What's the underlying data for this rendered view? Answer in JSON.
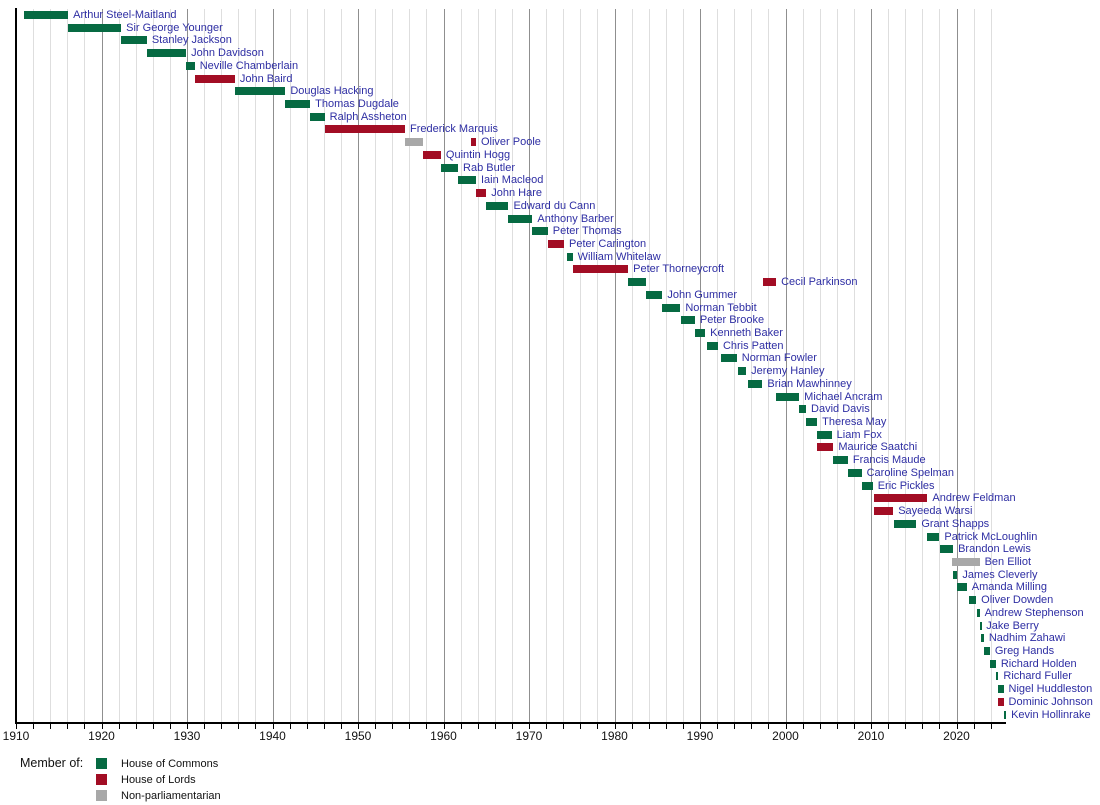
{
  "chart_data": {
    "type": "bar",
    "variant": "timeline-gantt",
    "title": "",
    "x_axis": {
      "range": [
        1910,
        2025.8
      ],
      "tick_labels": [
        "1910",
        "1920",
        "1930",
        "1940",
        "1950",
        "1960",
        "1970",
        "1980",
        "1990",
        "2000",
        "2010",
        "2020"
      ],
      "gridline_step_years": 2,
      "grid": true
    },
    "colors": {
      "commons": "#066a42",
      "lords": "#a20d24",
      "nonparl": "#a8a8a8",
      "label_text": "#2e2ea3",
      "grid_minor": "#dedede",
      "grid_major": "#8f8f8f",
      "axis": "#000000"
    },
    "legend": {
      "title": "Member of:",
      "items": [
        {
          "key": "commons",
          "label": "House of Commons",
          "color": "#066a42"
        },
        {
          "key": "lords",
          "label": "House of Lords",
          "color": "#a20d24"
        },
        {
          "key": "nonparl",
          "label": "Non-parliamentarian",
          "color": "#a8a8a8"
        }
      ]
    },
    "rows": [
      {
        "name": "Arthur Steel-Maitland",
        "bars": [
          {
            "start": 1910.9,
            "end": 1916.1,
            "house": "commons"
          }
        ]
      },
      {
        "name": "Sir George Younger",
        "bars": [
          {
            "start": 1916.1,
            "end": 1922.3,
            "house": "commons"
          }
        ]
      },
      {
        "name": "Stanley Jackson",
        "bars": [
          {
            "start": 1922.3,
            "end": 1925.3,
            "house": "commons"
          }
        ]
      },
      {
        "name": "John Davidson",
        "bars": [
          {
            "start": 1925.3,
            "end": 1929.9,
            "house": "commons"
          }
        ]
      },
      {
        "name": "Neville Chamberlain",
        "bars": [
          {
            "start": 1929.9,
            "end": 1930.9,
            "house": "commons"
          }
        ]
      },
      {
        "name": "John Baird",
        "bars": [
          {
            "start": 1930.9,
            "end": 1935.6,
            "house": "lords"
          }
        ]
      },
      {
        "name": "Douglas Hacking",
        "bars": [
          {
            "start": 1935.6,
            "end": 1941.5,
            "house": "commons"
          }
        ]
      },
      {
        "name": "Thomas Dugdale",
        "bars": [
          {
            "start": 1941.5,
            "end": 1944.4,
            "house": "commons"
          }
        ]
      },
      {
        "name": "Ralph Assheton",
        "bars": [
          {
            "start": 1944.4,
            "end": 1946.1,
            "house": "commons"
          }
        ]
      },
      {
        "name": "Frederick Marquis",
        "bars": [
          {
            "start": 1946.1,
            "end": 1955.5,
            "house": "lords"
          }
        ]
      },
      {
        "name": "Oliver Poole",
        "bars": [
          {
            "start": 1955.5,
            "end": 1957.6,
            "house": "nonparl"
          },
          {
            "start": 1963.2,
            "end": 1963.8,
            "house": "lords"
          }
        ]
      },
      {
        "name": "Quintin Hogg",
        "bars": [
          {
            "start": 1957.6,
            "end": 1959.7,
            "house": "lords"
          }
        ]
      },
      {
        "name": "Rab Butler",
        "bars": [
          {
            "start": 1959.7,
            "end": 1961.7,
            "house": "commons"
          }
        ]
      },
      {
        "name": "Iain Macleod",
        "bars": [
          {
            "start": 1961.7,
            "end": 1963.8,
            "house": "commons"
          }
        ]
      },
      {
        "name": "John Hare",
        "bars": [
          {
            "start": 1963.8,
            "end": 1965.0,
            "house": "lords"
          }
        ]
      },
      {
        "name": "Edward du Cann",
        "bars": [
          {
            "start": 1965.0,
            "end": 1967.6,
            "house": "commons"
          }
        ]
      },
      {
        "name": "Anthony Barber",
        "bars": [
          {
            "start": 1967.6,
            "end": 1970.4,
            "house": "commons"
          }
        ]
      },
      {
        "name": "Peter Thomas",
        "bars": [
          {
            "start": 1970.4,
            "end": 1972.2,
            "house": "commons"
          }
        ]
      },
      {
        "name": "Peter Carington",
        "bars": [
          {
            "start": 1972.2,
            "end": 1974.1,
            "house": "lords"
          }
        ]
      },
      {
        "name": "William Whitelaw",
        "bars": [
          {
            "start": 1974.4,
            "end": 1975.1,
            "house": "commons"
          }
        ]
      },
      {
        "name": "Peter Thorneycroft",
        "bars": [
          {
            "start": 1975.1,
            "end": 1981.6,
            "house": "lords"
          }
        ]
      },
      {
        "name": "Cecil Parkinson",
        "bars": [
          {
            "start": 1981.6,
            "end": 1983.7,
            "house": "commons"
          },
          {
            "start": 1997.4,
            "end": 1998.9,
            "house": "lords"
          }
        ]
      },
      {
        "name": "John Gummer",
        "bars": [
          {
            "start": 1983.7,
            "end": 1985.6,
            "house": "commons"
          }
        ]
      },
      {
        "name": "Norman Tebbit",
        "bars": [
          {
            "start": 1985.6,
            "end": 1987.7,
            "house": "commons"
          }
        ]
      },
      {
        "name": "Peter Brooke",
        "bars": [
          {
            "start": 1987.8,
            "end": 1989.4,
            "house": "commons"
          }
        ]
      },
      {
        "name": "Kenneth Baker",
        "bars": [
          {
            "start": 1989.4,
            "end": 1990.6,
            "house": "commons"
          }
        ]
      },
      {
        "name": "Chris Patten",
        "bars": [
          {
            "start": 1990.8,
            "end": 1992.1,
            "house": "commons"
          }
        ]
      },
      {
        "name": "Norman Fowler",
        "bars": [
          {
            "start": 1992.4,
            "end": 1994.3,
            "house": "commons"
          }
        ]
      },
      {
        "name": "Jeremy Hanley",
        "bars": [
          {
            "start": 1994.5,
            "end": 1995.4,
            "house": "commons"
          }
        ]
      },
      {
        "name": "Brian Mawhinney",
        "bars": [
          {
            "start": 1995.6,
            "end": 1997.3,
            "house": "commons"
          }
        ]
      },
      {
        "name": "Michael Ancram",
        "bars": [
          {
            "start": 1998.9,
            "end": 2001.6,
            "house": "commons"
          }
        ]
      },
      {
        "name": "David Davis",
        "bars": [
          {
            "start": 2001.6,
            "end": 2002.4,
            "house": "commons"
          }
        ]
      },
      {
        "name": "Theresa May",
        "bars": [
          {
            "start": 2002.4,
            "end": 2003.7,
            "house": "commons"
          }
        ]
      },
      {
        "name": "Liam Fox",
        "bars": [
          {
            "start": 2003.7,
            "end": 2005.4,
            "house": "commons"
          }
        ]
      },
      {
        "name": "Maurice Saatchi",
        "bars": [
          {
            "start": 2003.7,
            "end": 2005.6,
            "house": "lords"
          }
        ]
      },
      {
        "name": "Francis Maude",
        "bars": [
          {
            "start": 2005.5,
            "end": 2007.3,
            "house": "commons"
          }
        ]
      },
      {
        "name": "Caroline Spelman",
        "bars": [
          {
            "start": 2007.3,
            "end": 2008.9,
            "house": "commons"
          }
        ]
      },
      {
        "name": "Eric Pickles",
        "bars": [
          {
            "start": 2008.9,
            "end": 2010.2,
            "house": "commons"
          }
        ]
      },
      {
        "name": "Andrew Feldman",
        "bars": [
          {
            "start": 2010.4,
            "end": 2016.6,
            "house": "lords"
          }
        ]
      },
      {
        "name": "Sayeeda Warsi",
        "bars": [
          {
            "start": 2010.4,
            "end": 2012.6,
            "house": "lords"
          }
        ]
      },
      {
        "name": "Grant Shapps",
        "bars": [
          {
            "start": 2012.7,
            "end": 2015.3,
            "house": "commons"
          }
        ]
      },
      {
        "name": "Patrick McLoughlin",
        "bars": [
          {
            "start": 2016.5,
            "end": 2018.0,
            "house": "commons"
          }
        ]
      },
      {
        "name": "Brandon Lewis",
        "bars": [
          {
            "start": 2018.1,
            "end": 2019.6,
            "house": "commons"
          }
        ]
      },
      {
        "name": "Ben Elliot",
        "bars": [
          {
            "start": 2019.5,
            "end": 2022.7,
            "house": "nonparl"
          }
        ]
      },
      {
        "name": "James Cleverly",
        "bars": [
          {
            "start": 2019.6,
            "end": 2020.1,
            "house": "commons"
          }
        ]
      },
      {
        "name": "Amanda Milling",
        "bars": [
          {
            "start": 2020.1,
            "end": 2021.2,
            "house": "commons"
          }
        ]
      },
      {
        "name": "Oliver Dowden",
        "bars": [
          {
            "start": 2021.5,
            "end": 2022.3,
            "house": "commons"
          }
        ]
      },
      {
        "name": "Andrew Stephenson",
        "bars": [
          {
            "start": 2022.4,
            "end": 2022.7,
            "house": "commons"
          }
        ]
      },
      {
        "name": "Jake Berry",
        "bars": [
          {
            "start": 2022.7,
            "end": 2022.9,
            "house": "commons"
          }
        ]
      },
      {
        "name": "Nadhim Zahawi",
        "bars": [
          {
            "start": 2022.9,
            "end": 2023.2,
            "house": "commons"
          }
        ]
      },
      {
        "name": "Greg Hands",
        "bars": [
          {
            "start": 2023.2,
            "end": 2023.9,
            "house": "commons"
          }
        ]
      },
      {
        "name": "Richard Holden",
        "bars": [
          {
            "start": 2023.9,
            "end": 2024.6,
            "house": "commons"
          }
        ]
      },
      {
        "name": "Richard Fuller",
        "bars": [
          {
            "start": 2024.6,
            "end": 2024.9,
            "house": "commons"
          }
        ]
      },
      {
        "name": "Nigel Huddleston",
        "bars": [
          {
            "start": 2024.9,
            "end": 2025.5,
            "house": "commons"
          }
        ]
      },
      {
        "name": "Dominic Johnson",
        "bars": [
          {
            "start": 2024.9,
            "end": 2025.5,
            "house": "lords"
          }
        ]
      },
      {
        "name": "Kevin Hollinrake",
        "bars": [
          {
            "start": 2025.5,
            "end": 2025.8,
            "house": "commons"
          }
        ]
      }
    ]
  }
}
